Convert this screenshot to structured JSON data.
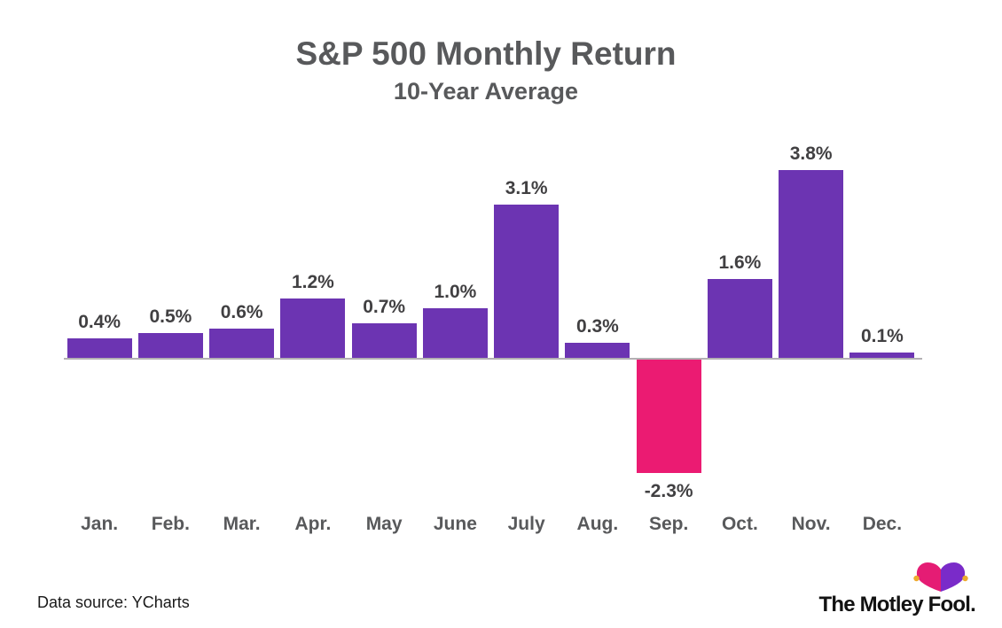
{
  "header": {
    "title": "S&P 500 Monthly Return",
    "subtitle": "10-Year Average"
  },
  "chart_data": {
    "type": "bar",
    "title": "S&P 500 Monthly Return",
    "subtitle": "10-Year Average",
    "categories": [
      "Jan.",
      "Feb.",
      "Mar.",
      "Apr.",
      "May",
      "June",
      "July",
      "Aug.",
      "Sep.",
      "Oct.",
      "Nov.",
      "Dec."
    ],
    "values": [
      0.4,
      0.5,
      0.6,
      1.2,
      0.7,
      1.0,
      3.1,
      0.3,
      -2.3,
      1.6,
      3.8,
      0.1
    ],
    "value_labels": [
      "0.4%",
      "0.5%",
      "0.6%",
      "1.2%",
      "0.7%",
      "1.0%",
      "3.1%",
      "0.3%",
      "-2.3%",
      "1.6%",
      "3.8%",
      "0.1%"
    ],
    "xlabel": "",
    "ylabel": "",
    "ylim": [
      -2.8,
      4.2
    ],
    "grid": false,
    "legend": false,
    "bar_color": "#6c34b2",
    "negative_bar_color": "#eb1b72",
    "value_labels_position": "above bars (below bar for negative September value)"
  },
  "footer": {
    "source_text": "Data source: YCharts",
    "brand_text": "The Motley Fool."
  },
  "icons": {
    "jester-hat-icon": "Motley Fool jester cap, pink left lobe, purple right lobe, gold bells"
  },
  "colors": {
    "positive_bar": "#6c34b2",
    "negative_bar": "#eb1b72",
    "axis_line": "#b3b0b3",
    "title_text": "#58595b",
    "value_label_text": "#414042",
    "month_label_text": "#58595b",
    "source_text": "#1a1a1a",
    "logo_text": "#121212",
    "hat_pink": "#e51c74",
    "hat_purple": "#7a2bc9",
    "bell_gold": "#eeab2e"
  }
}
